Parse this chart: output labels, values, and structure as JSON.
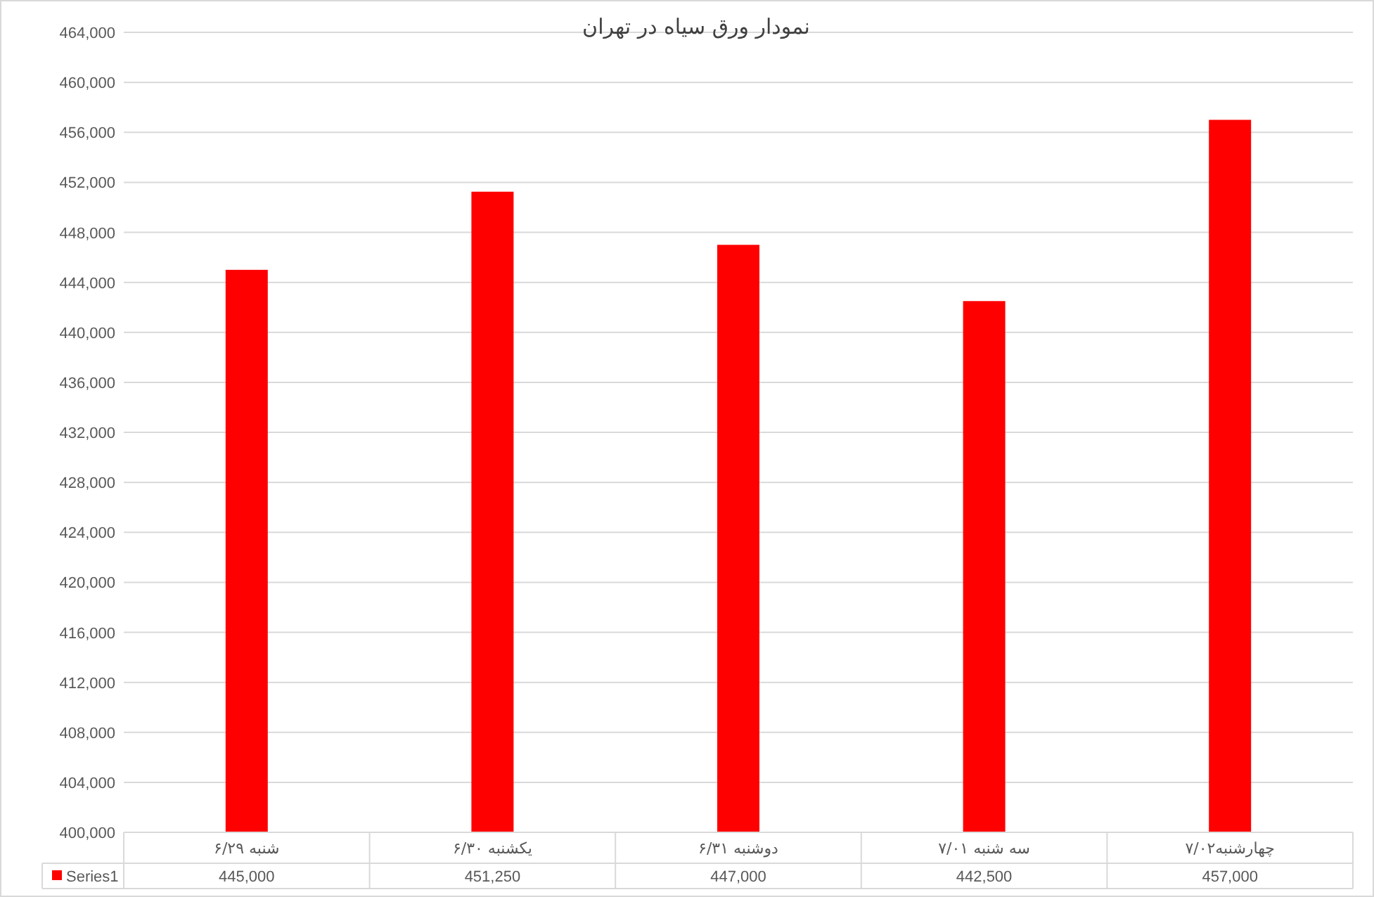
{
  "chart_data": {
    "type": "bar",
    "title": "نمودار ورق سیاه در تهران",
    "categories": [
      "شنبه ۶/۲۹",
      "یکشنبه ۶/۳۰",
      "دوشنبه ۶/۳۱",
      "سه شنبه ۷/۰۱",
      "چهارشنبه۷/۰۲"
    ],
    "series": [
      {
        "name": "Series1",
        "color": "#ff0000",
        "values": [
          445000,
          451250,
          447000,
          442500,
          457000
        ],
        "value_labels": [
          "445,000",
          "451,250",
          "447,000",
          "442,500",
          "457,000"
        ]
      }
    ],
    "ylim": [
      400000,
      464000
    ],
    "yticks": [
      {
        "value": 400000,
        "label": "400,000"
      },
      {
        "value": 404000,
        "label": "404,000"
      },
      {
        "value": 408000,
        "label": "408,000"
      },
      {
        "value": 412000,
        "label": "412,000"
      },
      {
        "value": 416000,
        "label": "416,000"
      },
      {
        "value": 420000,
        "label": "420,000"
      },
      {
        "value": 424000,
        "label": "424,000"
      },
      {
        "value": 428000,
        "label": "428,000"
      },
      {
        "value": 432000,
        "label": "432,000"
      },
      {
        "value": 436000,
        "label": "436,000"
      },
      {
        "value": 440000,
        "label": "440,000"
      },
      {
        "value": 444000,
        "label": "444,000"
      },
      {
        "value": 448000,
        "label": "448,000"
      },
      {
        "value": 452000,
        "label": "452,000"
      },
      {
        "value": 456000,
        "label": "456,000"
      },
      {
        "value": 460000,
        "label": "460,000"
      },
      {
        "value": 464000,
        "label": "464,000"
      }
    ],
    "grid": "y",
    "legend": "bottom"
  }
}
